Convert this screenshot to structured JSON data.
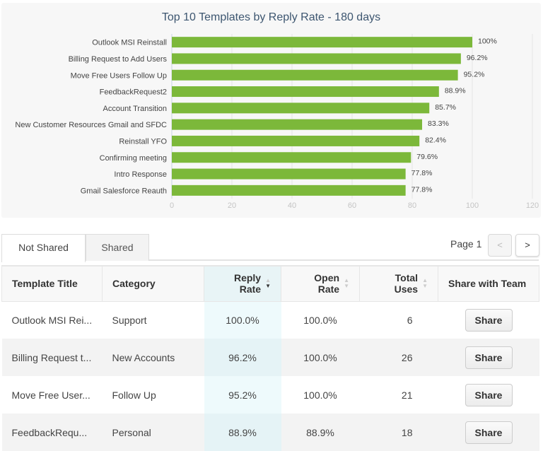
{
  "chart_data": {
    "type": "bar",
    "orientation": "horizontal",
    "title": "Top 10 Templates by Reply Rate - 180 days",
    "categories": [
      "Outlook MSI Reinstall",
      "Billing Request to Add Users",
      "Move Free Users Follow Up",
      "FeedbackRequest2",
      "Account Transition",
      "New Customer Resources Gmail and SFDC",
      "Reinstall YFO",
      "Confirming meeting",
      "Intro Response",
      "Gmail Salesforce Reauth"
    ],
    "values": [
      100,
      96.2,
      95.2,
      88.9,
      85.7,
      83.3,
      82.4,
      79.6,
      77.8,
      77.8
    ],
    "data_labels": [
      "100%",
      "96.2%",
      "95.2%",
      "88.9%",
      "85.7%",
      "83.3%",
      "82.4%",
      "79.6%",
      "77.8%",
      "77.8%"
    ],
    "xlim": [
      0,
      120
    ],
    "xticks": [
      "0",
      "20",
      "40",
      "60",
      "80",
      "100",
      "120"
    ],
    "grid": true,
    "bar_color": "#7cb83a"
  },
  "tabs": [
    {
      "label": "Not Shared",
      "active": true
    },
    {
      "label": "Shared",
      "active": false
    }
  ],
  "pagination": {
    "label": "Page 1",
    "prev": "<",
    "next": ">"
  },
  "table": {
    "columns": [
      "Template Title",
      "Category",
      "Reply Rate",
      "Open Rate",
      "Total Uses",
      "Share with Team"
    ],
    "reply_rate_header": [
      "Reply",
      "Rate"
    ],
    "open_rate_header": [
      "Open",
      "Rate"
    ],
    "total_uses_header": [
      "Total",
      "Uses"
    ],
    "sorted_column": "Reply Rate",
    "sort_direction": "descending",
    "rows": [
      {
        "title": "Outlook MSI Rei...",
        "category": "Support",
        "reply": "100.0%",
        "open": "100.0%",
        "uses": "6",
        "action": "Share"
      },
      {
        "title": "Billing Request t...",
        "category": "New Accounts",
        "reply": "96.2%",
        "open": "100.0%",
        "uses": "26",
        "action": "Share"
      },
      {
        "title": "Move Free User...",
        "category": "Follow Up",
        "reply": "95.2%",
        "open": "100.0%",
        "uses": "21",
        "action": "Share"
      },
      {
        "title": "FeedbackRequ...",
        "category": "Personal",
        "reply": "88.9%",
        "open": "88.9%",
        "uses": "18",
        "action": "Share"
      }
    ]
  }
}
